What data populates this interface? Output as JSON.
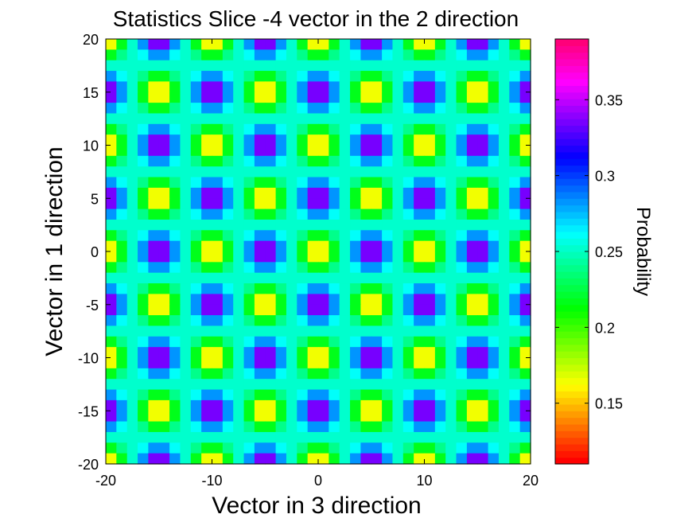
{
  "chart_data": {
    "type": "heatmap",
    "title": "Statistics Slice -4 vector in the 2 direction",
    "xlabel": "Vector in 3 direction",
    "ylabel": "Vector in 1 direction",
    "xlim": [
      -20,
      20
    ],
    "ylim": [
      -20,
      20
    ],
    "x_ticks": [
      -20,
      -10,
      0,
      10,
      20
    ],
    "y_ticks": [
      -20,
      -15,
      -10,
      -5,
      0,
      5,
      10,
      15,
      20
    ],
    "grid": false,
    "colorbar": {
      "label": "Probability",
      "range": [
        0.11,
        0.39
      ],
      "ticks": [
        0.15,
        0.2,
        0.25,
        0.3,
        0.35
      ],
      "colormap": "hsv"
    },
    "grid_size": [
      40,
      40
    ],
    "pattern": {
      "base_value": 0.25,
      "x_period": 10,
      "y_period": 10,
      "x_peak_offset": 5,
      "y_peak_offset": 0,
      "spot_amplitude": 0.14,
      "spot_radius": 2.5,
      "description_of_values": "value = base + amplitude*cos(pi*x/5)*cos(pi*y/5)*envelope; red spots (~0.39) alternate with yellow-centred (~0.14) spots"
    }
  }
}
